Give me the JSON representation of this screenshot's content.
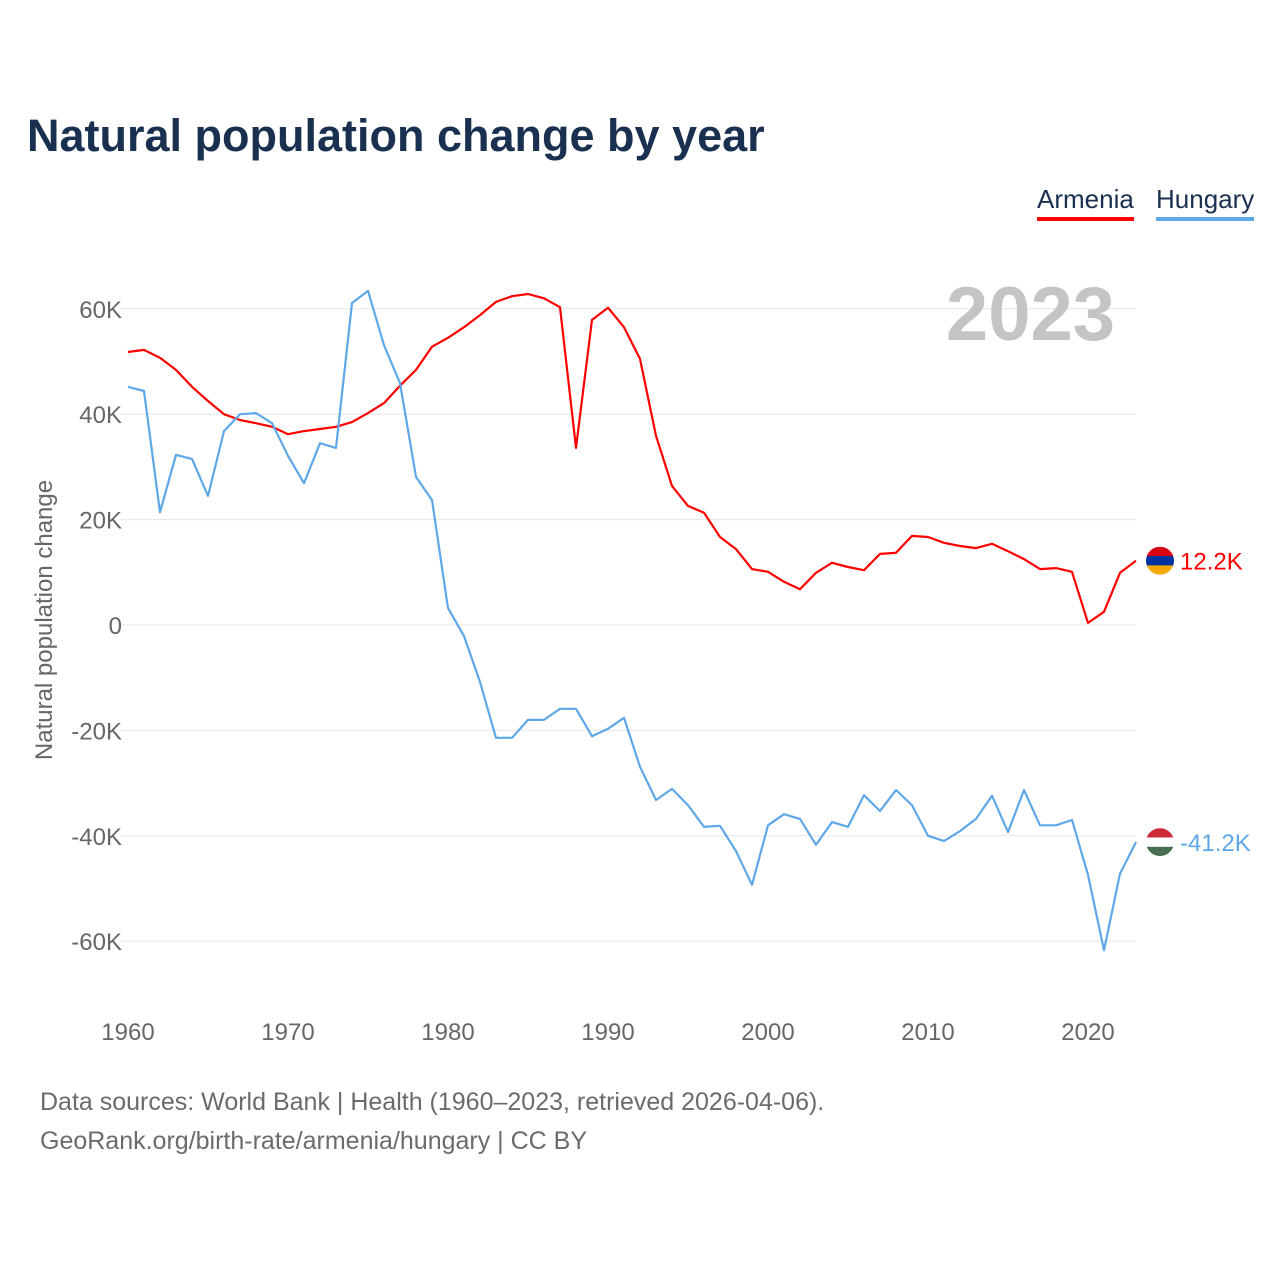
{
  "title": "Natural population change by year",
  "legend": [
    {
      "name": "Armenia",
      "color": "#ff0000"
    },
    {
      "name": "Hungary",
      "color": "#5fa8e8"
    }
  ],
  "year_label": "2023",
  "footer": {
    "line1": "Data sources: World Bank | Health (1960–2023, retrieved 2026-04-06).",
    "line2": "GeoRank.org/birth-rate/armenia/hungary | CC BY"
  },
  "chart_data": {
    "type": "line",
    "title": "Natural population change by year",
    "xlabel": "",
    "ylabel": "Natural population change",
    "xlim": [
      1960,
      2023
    ],
    "ylim": [
      -70000,
      70000
    ],
    "x_ticks": [
      1960,
      1970,
      1980,
      1990,
      2000,
      2010,
      2020
    ],
    "x_tick_labels": [
      "1960",
      "1970",
      "1980",
      "1990",
      "2000",
      "2010",
      "2020"
    ],
    "y_ticks": [
      60000,
      40000,
      20000,
      0,
      -20000,
      -40000,
      -60000
    ],
    "y_tick_labels": [
      "60K",
      "40K",
      "20K",
      "0",
      "-20K",
      "-40K",
      "-60K"
    ],
    "grid": true,
    "legend_position": "top-right",
    "series": [
      {
        "name": "Armenia",
        "color": "#ff0000",
        "end_label": "12.2K",
        "values": [
          51.8,
          52.2,
          50.7,
          48.4,
          45.2,
          42.5,
          40.0,
          38.9,
          38.3,
          37.6,
          36.2,
          36.8,
          37.2,
          37.6,
          38.5,
          40.2,
          42.1,
          45.4,
          48.4,
          52.8,
          54.5,
          56.5,
          58.8,
          61.3,
          62.4,
          62.8,
          62.0,
          60.3,
          33.6,
          57.9,
          60.2,
          56.5,
          50.5,
          35.9,
          26.4,
          22.6,
          21.3,
          16.7,
          14.4,
          10.6,
          10.1,
          8.2,
          6.8,
          9.9,
          11.8,
          11.0,
          10.4,
          13.5,
          13.7,
          16.9,
          16.7,
          15.6,
          15.0,
          14.6,
          15.4,
          14.0,
          12.5,
          10.6,
          10.8,
          10.1,
          0.4,
          2.5,
          9.9,
          12.2
        ]
      },
      {
        "name": "Hungary",
        "color": "#5fa8e8",
        "end_label": "-41.2K",
        "values": [
          45.2,
          44.4,
          21.4,
          32.3,
          31.5,
          24.5,
          36.8,
          40.0,
          40.2,
          38.3,
          32.1,
          26.9,
          34.5,
          33.6,
          61.1,
          63.4,
          53.1,
          45.9,
          28.1,
          23.7,
          3.2,
          -2.1,
          -10.8,
          -21.4,
          -21.4,
          -18.0,
          -18.0,
          -15.9,
          -15.9,
          -21.1,
          -19.7,
          -17.6,
          -26.9,
          -33.2,
          -31.1,
          -34.2,
          -38.3,
          -38.1,
          -42.9,
          -49.3,
          -38.0,
          -35.9,
          -36.8,
          -41.7,
          -37.4,
          -38.3,
          -32.3,
          -35.3,
          -31.3,
          -34.2,
          -40.0,
          -41.0,
          -39.1,
          -36.8,
          -32.4,
          -39.3,
          -31.3,
          -38.0,
          -38.0,
          -37.0,
          -47.4,
          -61.7,
          -47.2,
          -41.2
        ]
      }
    ],
    "value_unit": "thousands"
  }
}
